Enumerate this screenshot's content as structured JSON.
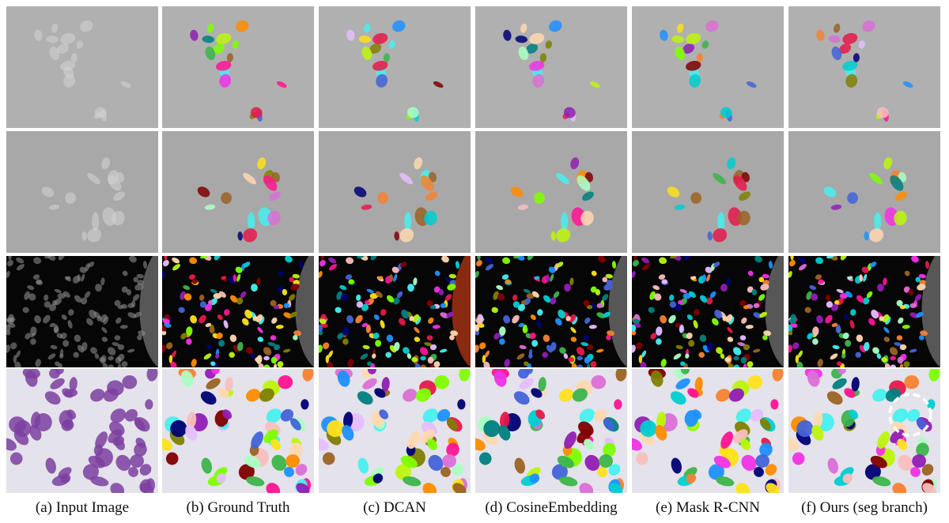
{
  "columns": [
    {
      "key": "input",
      "caption": "(a) Input Image"
    },
    {
      "key": "gt",
      "caption": "(b) Ground Truth"
    },
    {
      "key": "dcan",
      "caption": "(c) DCAN"
    },
    {
      "key": "cosine",
      "caption": "(d) CosineEmbedding"
    },
    {
      "key": "maskrcnn",
      "caption": "(e) Mask R-CNN"
    },
    {
      "key": "ours",
      "caption": "(f) Ours (seg branch)"
    }
  ],
  "rows": [
    {
      "key": "phase-contrast-1",
      "background": "#a7a7a7"
    },
    {
      "key": "phase-contrast-2",
      "background": "#9f9f9f"
    },
    {
      "key": "fluorescence",
      "background": "#060606"
    },
    {
      "key": "histology",
      "background": "#e4e2ea"
    }
  ],
  "palette": [
    "#e6194b",
    "#3cb44b",
    "#ffe119",
    "#4363d8",
    "#f58231",
    "#911eb4",
    "#46f0f0",
    "#f032e6",
    "#bcf60c",
    "#fabebe",
    "#008080",
    "#e6beff",
    "#9a6324",
    "#800000",
    "#aaffc3",
    "#808000",
    "#ffd8b1",
    "#000075",
    "#ff1493",
    "#00ced1",
    "#7fff00",
    "#ff8c00",
    "#1e90ff",
    "#da70d6"
  ],
  "colors": {
    "input_cell_phase": "#d4d4d4",
    "input_cell_fluor": "#8a8a8a",
    "input_cell_histo": "#7d3fa0",
    "highlight_ring": "#ffffff"
  }
}
